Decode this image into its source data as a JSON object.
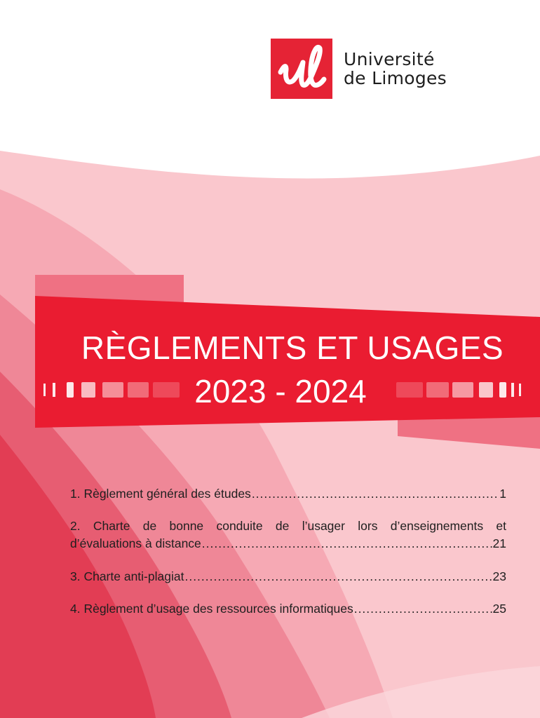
{
  "logo": {
    "mark_letters": "ul",
    "line1": "Université",
    "line2": "de Limoges"
  },
  "banner": {
    "title": "RÈGLEMENTS ET USAGES",
    "year": "2023 - 2024"
  },
  "toc": {
    "items": [
      {
        "label": "1.  Règlement  général  des  études",
        "dots": "..................................................................................................",
        "page": "1"
      },
      {
        "label_line1": "2.  Charte  de  bonne  conduite  de  l’usager  lors  d’enseignements  et",
        "label": "d’évaluations à distance",
        "dots": "..................................................................................................",
        "page": "21"
      },
      {
        "label": "3. Charte anti-plagiat",
        "dots": "..................................................................................................",
        "page": "23"
      },
      {
        "label": "4. Règlement d’usage des ressources informatiques ",
        "dots": "..................................................................................................",
        "page": "25"
      }
    ]
  },
  "colors": {
    "brand_red": "#e52335",
    "pink_light": "#f9c4cb",
    "pink_mid": "#f0808f",
    "rose": "#e34a5e",
    "text": "#1f1f1f"
  }
}
